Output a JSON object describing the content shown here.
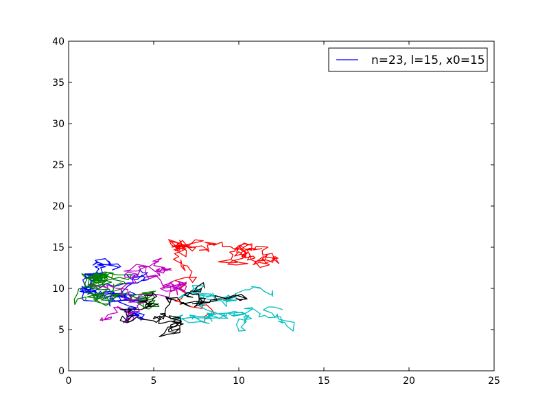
{
  "chart_data": {
    "type": "line",
    "title": "",
    "xlabel": "",
    "ylabel": "",
    "xlim": [
      0,
      25
    ],
    "ylim": [
      0,
      40
    ],
    "xticks": [
      0,
      5,
      10,
      15,
      20,
      25
    ],
    "yticks": [
      0,
      5,
      10,
      15,
      20,
      25,
      30,
      35,
      40
    ],
    "xtick_labels": [
      "0",
      "5",
      "10",
      "15",
      "20",
      "25"
    ],
    "ytick_labels": [
      "0",
      "5",
      "10",
      "15",
      "20",
      "25",
      "30",
      "35",
      "40"
    ],
    "grid": false,
    "legend": {
      "placement": "top-right",
      "entries": [
        {
          "label": "n=23, l=15, x0=15",
          "color": "#0000ff"
        }
      ]
    },
    "series": [
      {
        "name": "n=23, l=15, x0=15",
        "color": "#0000ff",
        "seed": 11,
        "start": [
          2.0,
          9.0
        ],
        "steps": 170,
        "box": [
          0.5,
          15.6,
          1.2,
          17.0
        ]
      },
      {
        "name": "",
        "color": "#008000",
        "seed": 23,
        "start": [
          1.0,
          8.5
        ],
        "steps": 170,
        "box": [
          0.3,
          14.0,
          2.5,
          12.0
        ]
      },
      {
        "name": "",
        "color": "#ff0000",
        "seed": 37,
        "start": [
          8.0,
          6.0
        ],
        "steps": 170,
        "box": [
          0.5,
          14.0,
          1.5,
          16.0
        ]
      },
      {
        "name": "",
        "color": "#00bfbf",
        "seed": 51,
        "start": [
          12.0,
          9.0
        ],
        "steps": 150,
        "box": [
          5.0,
          15.8,
          2.5,
          15.0
        ]
      },
      {
        "name": "",
        "color": "#bf00bf",
        "seed": 67,
        "start": [
          2.0,
          6.0
        ],
        "steps": 130,
        "box": [
          0.3,
          7.0,
          3.0,
          14.0
        ]
      },
      {
        "name": "",
        "color": "#000000",
        "seed": 83,
        "start": [
          8.0,
          10.0
        ],
        "steps": 130,
        "box": [
          3.0,
          13.0,
          4.0,
          13.5
        ]
      }
    ]
  }
}
